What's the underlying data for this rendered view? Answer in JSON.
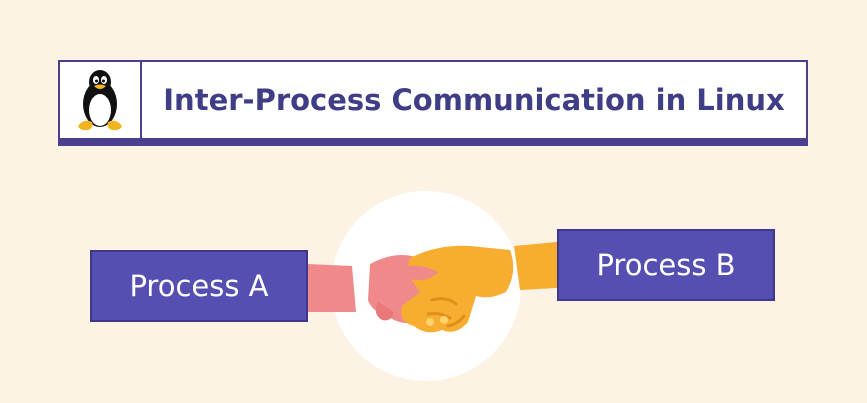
{
  "header": {
    "title": "Inter-Process Communication in Linux",
    "logo_icon": "tux-penguin-icon"
  },
  "processes": {
    "a_label": "Process A",
    "b_label": "Process B"
  },
  "illustration": {
    "icon": "handshake-icon"
  },
  "colors": {
    "background": "#fdf3e4",
    "accent": "#554fb1",
    "title": "#3e3d86",
    "left_hand": "#f08a8a",
    "right_hand": "#f7ad30"
  }
}
